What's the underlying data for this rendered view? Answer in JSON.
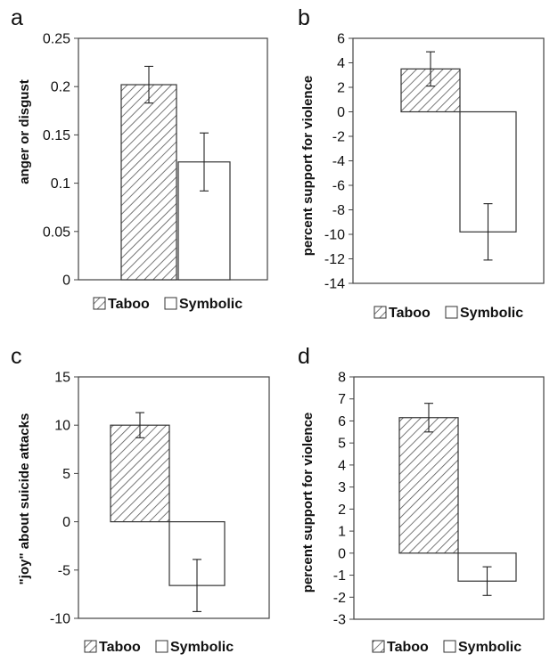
{
  "legend": {
    "taboo": "Taboo",
    "symbolic": "Symbolic"
  },
  "chart_data": [
    {
      "panel": "a",
      "type": "bar",
      "categories": [
        "Taboo",
        "Symbolic"
      ],
      "values": [
        0.202,
        0.122
      ],
      "errors": [
        0.019,
        0.03
      ],
      "ylabel": "anger or disgust",
      "ylim": [
        0,
        0.25
      ],
      "yticks": [
        "0",
        "0.05",
        "0.1",
        "0.15",
        "0.2",
        "0.25"
      ],
      "legend_position": "bottom",
      "grid": false
    },
    {
      "panel": "b",
      "type": "bar",
      "categories": [
        "Taboo",
        "Symbolic"
      ],
      "values": [
        3.5,
        -9.8
      ],
      "errors": [
        1.4,
        2.3
      ],
      "ylabel": "percent support for violence",
      "ylim": [
        -14,
        6
      ],
      "yticks": [
        "6",
        "4",
        "2",
        "0",
        "-2",
        "-4",
        "-6",
        "-8",
        "-10",
        "-12",
        "-14"
      ],
      "legend_position": "bottom",
      "grid": false
    },
    {
      "panel": "c",
      "type": "bar",
      "categories": [
        "Taboo",
        "Symbolic"
      ],
      "values": [
        10.0,
        -6.6
      ],
      "errors": [
        1.3,
        2.7
      ],
      "ylabel": "\"joy\" about suicide attacks",
      "ylim": [
        -10,
        15
      ],
      "yticks": [
        "15",
        "10",
        "5",
        "0",
        "-5",
        "-10"
      ],
      "legend_position": "bottom",
      "grid": false
    },
    {
      "panel": "d",
      "type": "bar",
      "categories": [
        "Taboo",
        "Symbolic"
      ],
      "values": [
        6.15,
        -1.27
      ],
      "errors": [
        0.65,
        0.65
      ],
      "ylabel": "percent support for violence",
      "ylim": [
        -3,
        8
      ],
      "yticks": [
        "8",
        "7",
        "6",
        "5",
        "4",
        "3",
        "2",
        "1",
        "0",
        "-1",
        "-2",
        "-3"
      ],
      "legend_position": "bottom",
      "grid": false
    }
  ]
}
